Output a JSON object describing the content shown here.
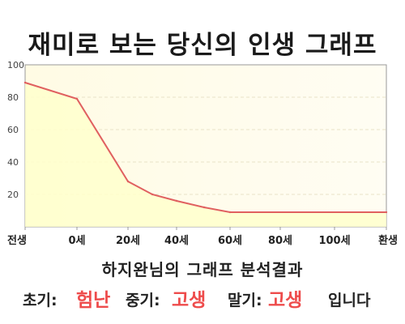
{
  "title": "재미로 보는 당신의 인생 그래프",
  "chart_data": {
    "type": "area",
    "x_ticks": [
      "전생",
      "0세",
      "20세",
      "40세",
      "60세",
      "80세",
      "100세",
      "환생"
    ],
    "y_ticks": [
      "20",
      "40",
      "60",
      "80",
      "100"
    ],
    "ylim": [
      0,
      100
    ],
    "points": [
      {
        "x": "전생",
        "y": 89
      },
      {
        "x": "0세",
        "y": 79
      },
      {
        "x": "20세",
        "y": 28
      },
      {
        "x": "30세",
        "y": 20
      },
      {
        "x": "40세",
        "y": 16
      },
      {
        "x": "50세",
        "y": 12
      },
      {
        "x": "60세",
        "y": 9
      },
      {
        "x": "환생",
        "y": 9
      }
    ],
    "line_color": "#e06060",
    "fill_color": "#ffffcc",
    "grid": true
  },
  "summary": "하지완님의 그래프 분석결과",
  "result": {
    "early_label": "초기:",
    "early_value": "험난",
    "mid_label": "중기:",
    "mid_value": "고생",
    "late_label": "말기:",
    "late_value": "고생",
    "ending": "입니다"
  },
  "colors": {
    "accent": "#ee4b4b"
  }
}
